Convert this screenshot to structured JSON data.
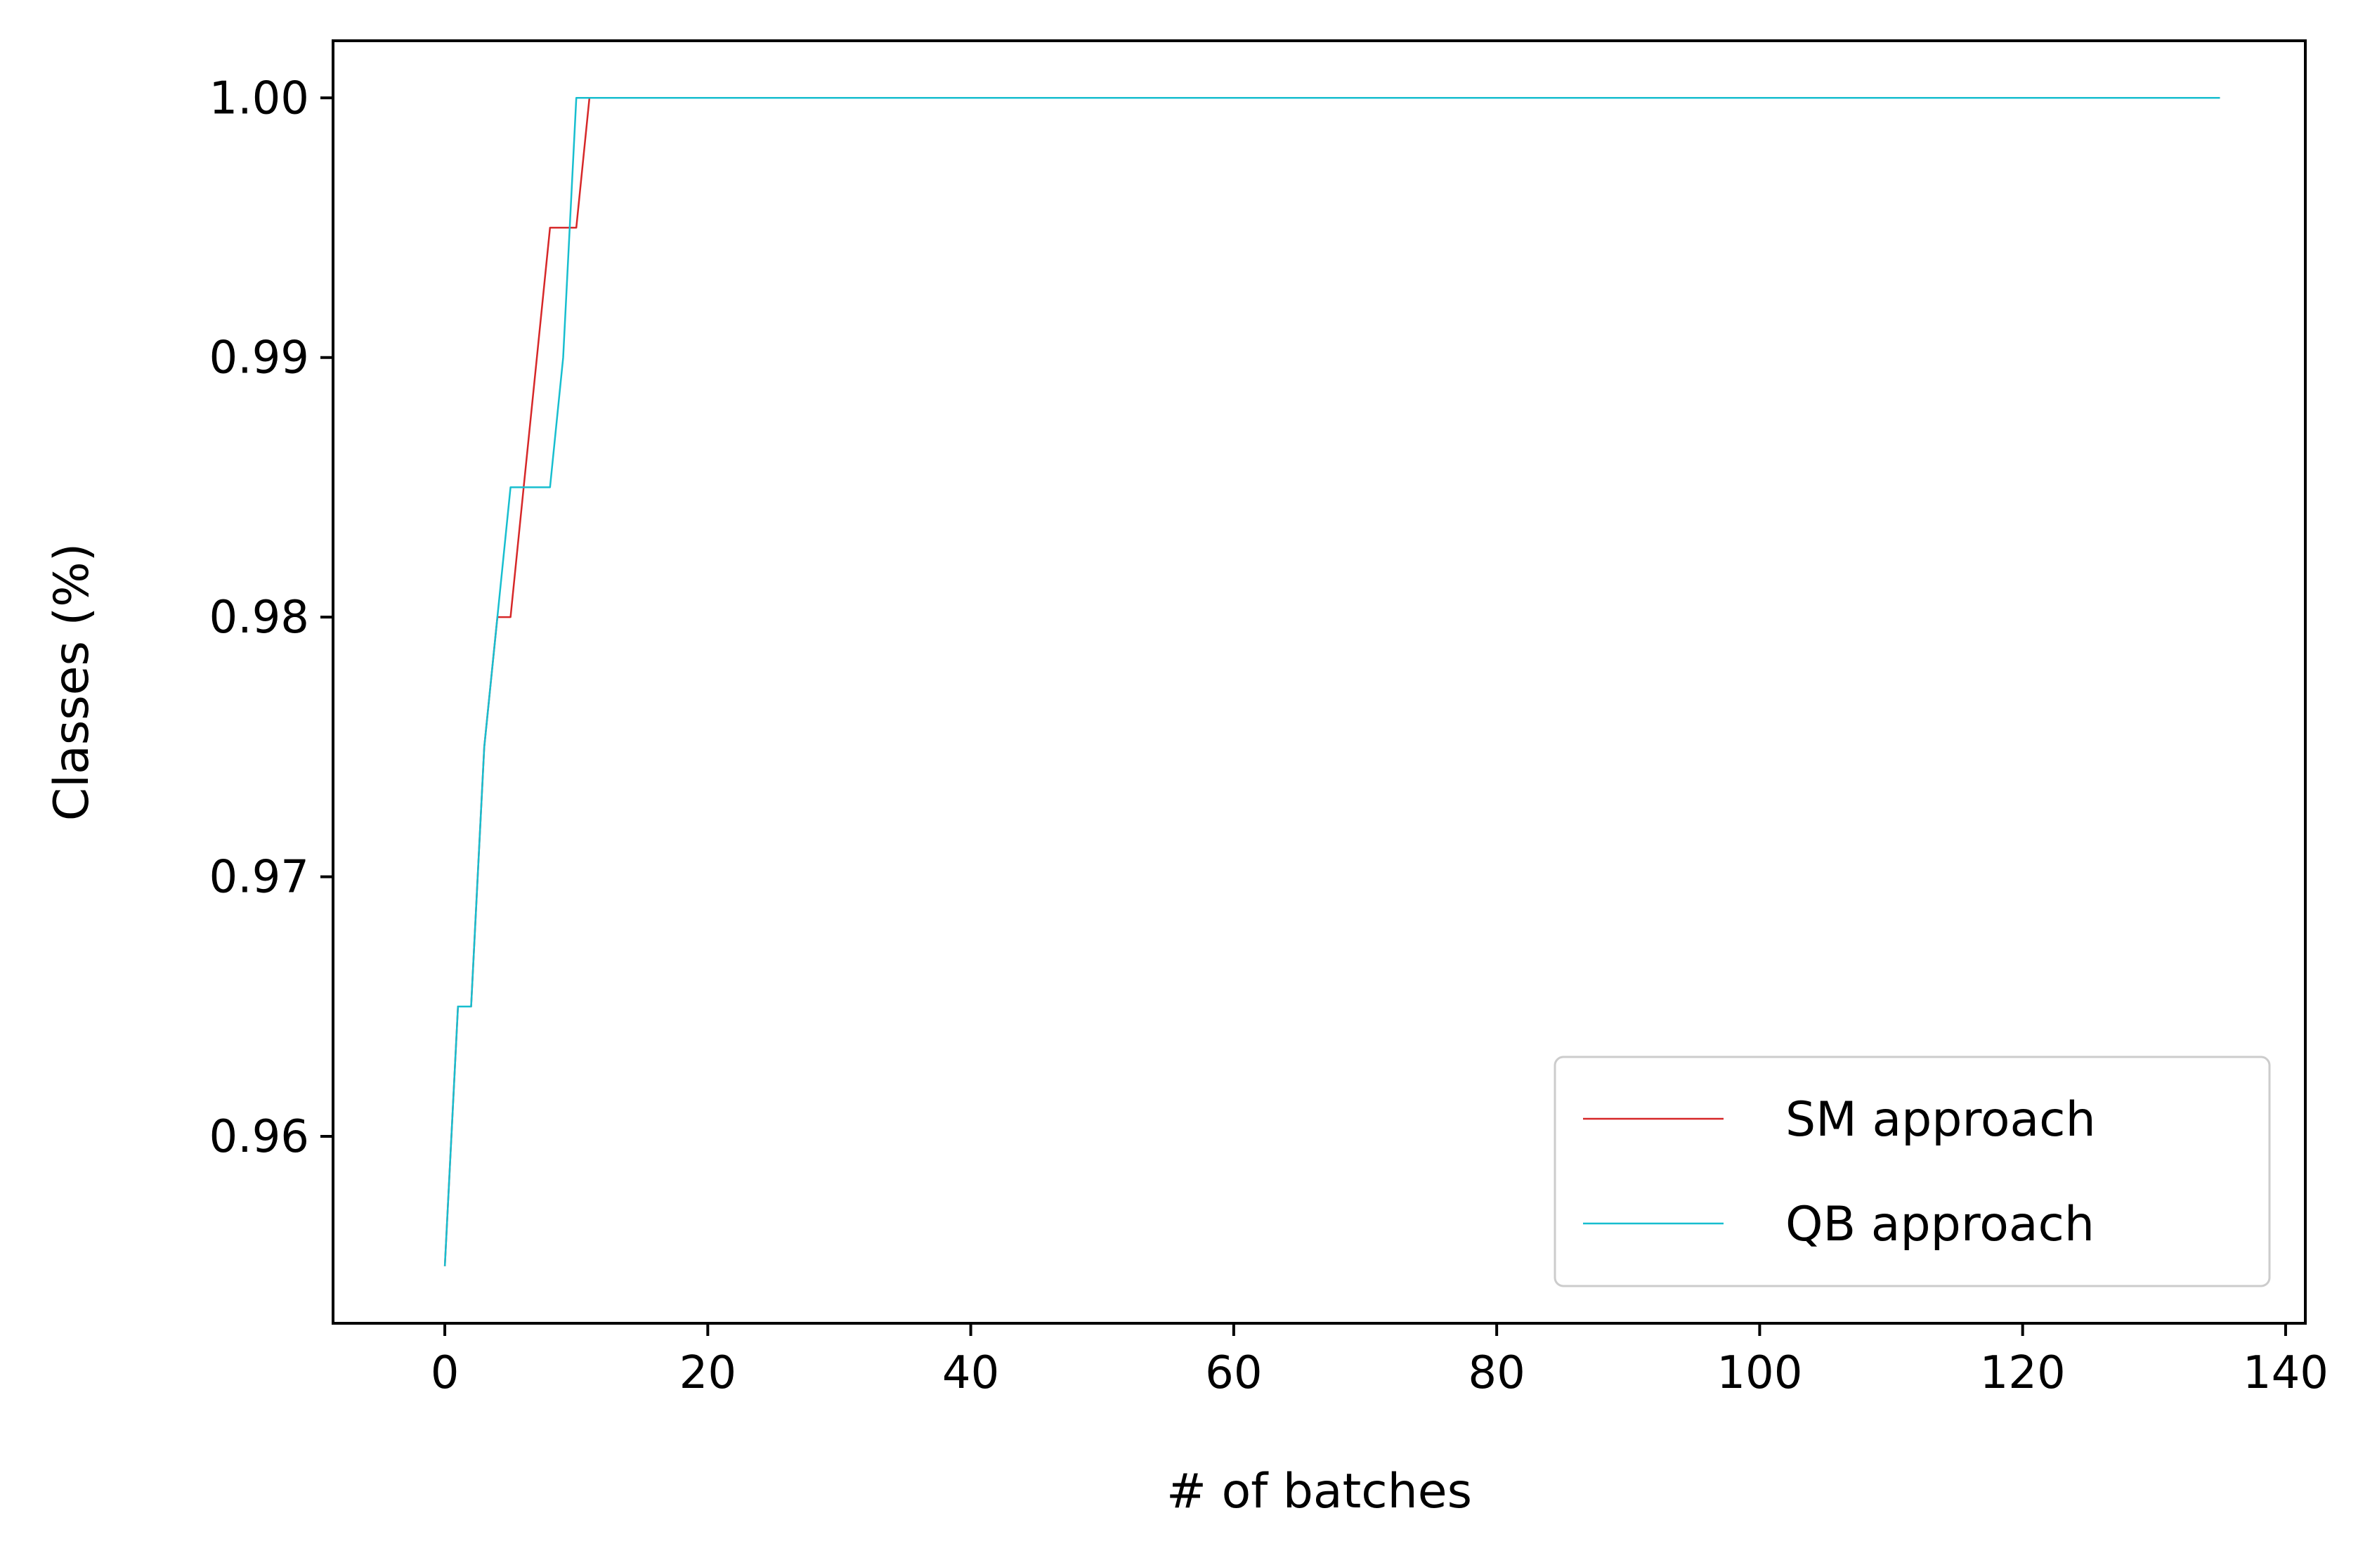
{
  "chart_data": {
    "type": "line",
    "xlabel": "# of batches",
    "ylabel": "Classes (%)",
    "xlim": [
      -8.5,
      141.5
    ],
    "ylim": [
      0.9528,
      1.0022
    ],
    "xticks": [
      0,
      20,
      40,
      60,
      80,
      100,
      120,
      140
    ],
    "xtick_labels": [
      "0",
      "20",
      "40",
      "60",
      "80",
      "100",
      "120",
      "140"
    ],
    "yticks": [
      0.96,
      0.97,
      0.98,
      0.99,
      1.0
    ],
    "ytick_labels": [
      "0.96",
      "0.97",
      "0.98",
      "0.99",
      "1.00"
    ],
    "grid": false,
    "legend_position": "lower-right",
    "series": [
      {
        "name": "SM approach",
        "color": "#d62728",
        "x": [
          0,
          1,
          2,
          3,
          4,
          5,
          6,
          7,
          8,
          9,
          10,
          11,
          135
        ],
        "y": [
          0.955,
          0.965,
          0.965,
          0.975,
          0.98,
          0.98,
          0.985,
          0.99,
          0.995,
          0.995,
          0.995,
          1.0,
          1.0
        ]
      },
      {
        "name": "QB approach",
        "color": "#17becf",
        "x": [
          0,
          1,
          2,
          3,
          4,
          5,
          6,
          7,
          8,
          9,
          10,
          11,
          135
        ],
        "y": [
          0.955,
          0.965,
          0.965,
          0.975,
          0.98,
          0.985,
          0.985,
          0.985,
          0.985,
          0.99,
          1.0,
          1.0,
          1.0
        ]
      }
    ]
  }
}
